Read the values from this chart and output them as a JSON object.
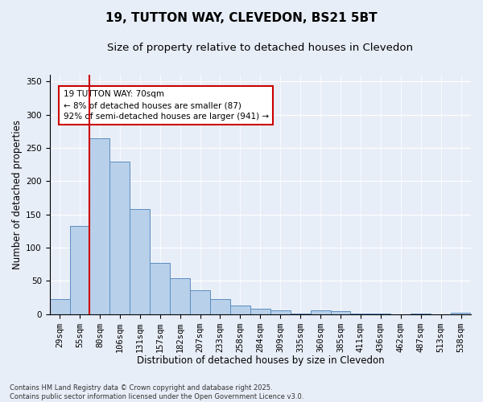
{
  "title_line1": "19, TUTTON WAY, CLEVEDON, BS21 5BT",
  "title_line2": "Size of property relative to detached houses in Clevedon",
  "xlabel": "Distribution of detached houses by size in Clevedon",
  "ylabel": "Number of detached properties",
  "categories": [
    "29sqm",
    "55sqm",
    "80sqm",
    "106sqm",
    "131sqm",
    "157sqm",
    "182sqm",
    "207sqm",
    "233sqm",
    "258sqm",
    "284sqm",
    "309sqm",
    "335sqm",
    "360sqm",
    "385sqm",
    "411sqm",
    "436sqm",
    "462sqm",
    "487sqm",
    "513sqm",
    "538sqm"
  ],
  "values": [
    22,
    133,
    265,
    229,
    158,
    77,
    54,
    36,
    22,
    13,
    8,
    6,
    1,
    6,
    4,
    1,
    1,
    0,
    1,
    0,
    2
  ],
  "bar_color": "#b8d0ea",
  "bar_edge_color": "#5b8dc0",
  "vline_x_index": 1.5,
  "vline_color": "#cc0000",
  "annotation_text": "19 TUTTON WAY: 70sqm\n← 8% of detached houses are smaller (87)\n92% of semi-detached houses are larger (941) →",
  "annotation_box_color": "#ffffff",
  "annotation_box_edge": "#cc0000",
  "ylim": [
    0,
    360
  ],
  "yticks": [
    0,
    50,
    100,
    150,
    200,
    250,
    300,
    350
  ],
  "bg_color": "#e8eef8",
  "plot_bg_color": "#e8eef8",
  "footnote": "Contains HM Land Registry data © Crown copyright and database right 2025.\nContains public sector information licensed under the Open Government Licence v3.0.",
  "title_fontsize": 11,
  "subtitle_fontsize": 9.5,
  "axis_label_fontsize": 8.5,
  "tick_fontsize": 7.5,
  "annot_fontsize": 7.5
}
